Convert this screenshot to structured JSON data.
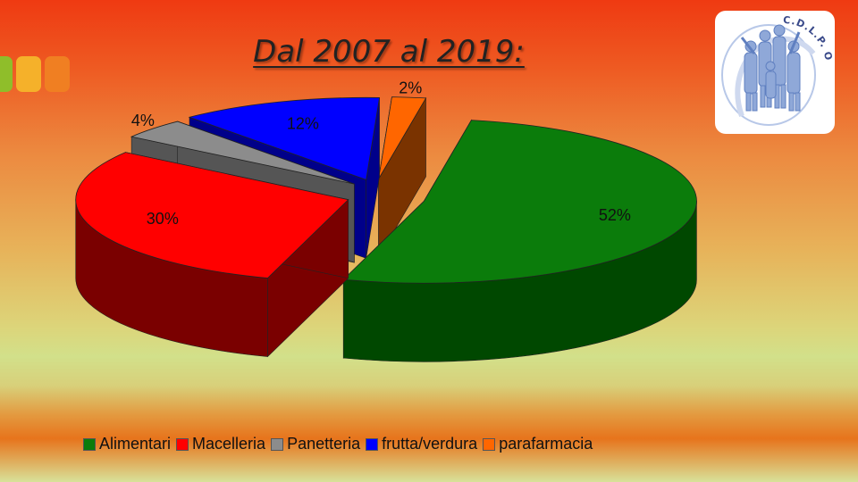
{
  "slide": {
    "title": "Dal 2007 al 2019:",
    "accent_colors": [
      "#8fbe2a",
      "#f5b12a",
      "#f07f22"
    ],
    "logo": {
      "text": "C.D.L.P. ODV",
      "icon": "group-of-people-logo"
    }
  },
  "chart_data": {
    "type": "pie",
    "three_d": true,
    "exploded": true,
    "categories": [
      "Alimentari",
      "Macelleria",
      "Panetteria",
      "frutta/verdura",
      "parafarmacia"
    ],
    "values": [
      52,
      30,
      4,
      12,
      2
    ],
    "labels": [
      "52%",
      "30%",
      "4%",
      "12%",
      "2%"
    ],
    "colors": [
      "#0b7c0b",
      "#ff0000",
      "#8c8c8c",
      "#0000ff",
      "#ff6600"
    ],
    "side_colors": [
      "#004800",
      "#7a0000",
      "#555555",
      "#00008a",
      "#7a3300"
    ],
    "legend_position": "bottom"
  }
}
